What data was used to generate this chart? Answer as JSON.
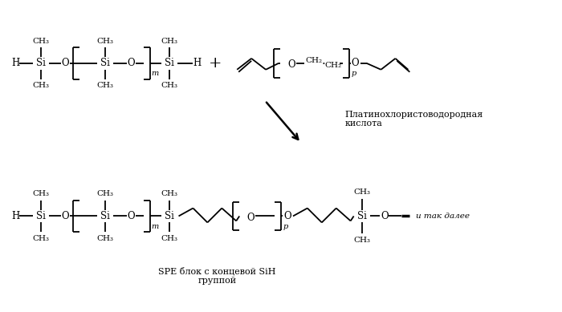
{
  "bg_color": "#ffffff",
  "fig_width": 7.0,
  "fig_height": 3.89,
  "arrow_label": "Платинохлористоводородная\nкислота",
  "bottom_label": "SPE блок с концевой SiH\nгруппой",
  "et_cetera": "и так далее"
}
